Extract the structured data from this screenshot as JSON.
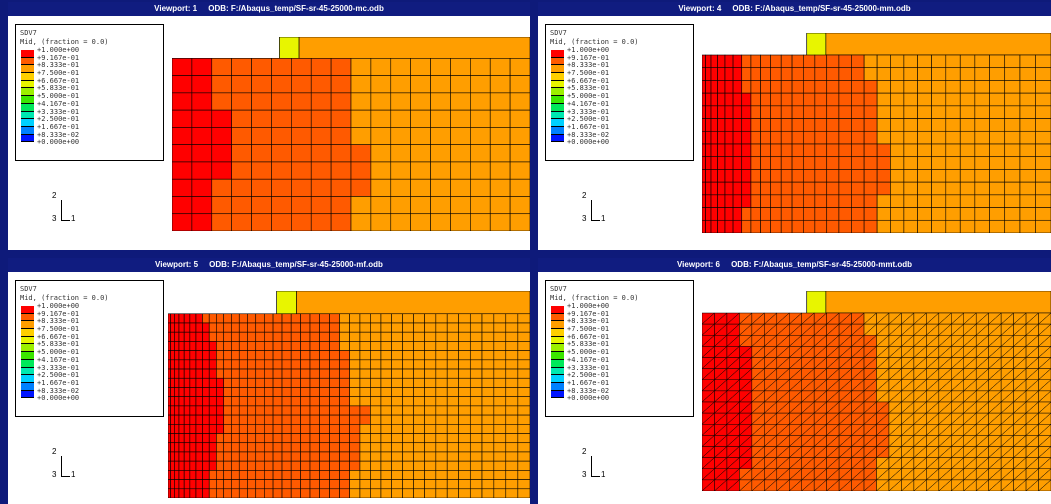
{
  "viewports": [
    {
      "title": "Viewport: 1     ODB: F:/Abaqus_temp/SF-sr-45-25000-mc.odb"
    },
    {
      "title": "Viewport: 4     ODB: F:/Abaqus_temp/SF-sr-45-25000-mm.odb"
    },
    {
      "title": "Viewport: 5     ODB: F:/Abaqus_temp/SF-sr-45-25000-mf.odb"
    },
    {
      "title": "Viewport: 6     ODB: F:/Abaqus_temp/SF-sr-45-25000-mmt.odb"
    }
  ],
  "legend": {
    "variable": "SDV7",
    "subtitle": "Mid, (fraction = 0.0)",
    "labels": [
      "+1.000e+00",
      "+9.167e-01",
      "+8.333e-01",
      "+7.500e-01",
      "+6.667e-01",
      "+5.833e-01",
      "+5.000e-01",
      "+4.167e-01",
      "+3.333e-01",
      "+2.500e-01",
      "+1.667e-01",
      "+8.333e-02",
      "+0.000e+00"
    ],
    "colors": [
      "#ff0000",
      "#ff5a00",
      "#ff9e00",
      "#ffcf00",
      "#e8f500",
      "#9cf000",
      "#3be600",
      "#00e85a",
      "#00e8b0",
      "#00d0ff",
      "#0080ff",
      "#0014ff"
    ]
  },
  "triad": {
    "axis_2": "2",
    "axis_1": "1",
    "axis_3": "3"
  }
}
